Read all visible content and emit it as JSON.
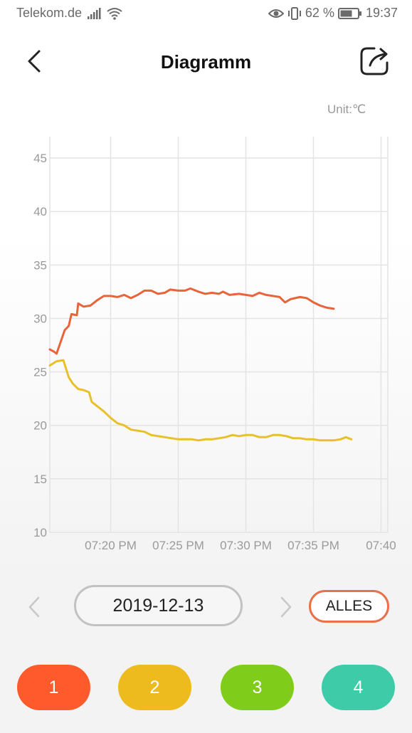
{
  "status_bar": {
    "carrier": "Telekom.de",
    "battery": "62 %",
    "time": "19:37"
  },
  "header": {
    "title": "Diagramm"
  },
  "unit_label": "Unit:℃",
  "chart_data": {
    "type": "line",
    "title": "",
    "xlabel": "",
    "ylabel": "",
    "ylim": [
      10,
      47
    ],
    "yticks": [
      10,
      15,
      20,
      25,
      30,
      35,
      40,
      45
    ],
    "x_ticks": [
      {
        "t": 20,
        "label": "07:20 PM"
      },
      {
        "t": 25,
        "label": "07:25 PM"
      },
      {
        "t": 30,
        "label": "07:30 PM"
      },
      {
        "t": 35,
        "label": "07:35 PM"
      },
      {
        "t": 40,
        "label": "07:40"
      }
    ],
    "xlim": [
      15.5,
      40.5
    ],
    "grid": true,
    "series": [
      {
        "color": "#e8643a",
        "points": [
          [
            15.5,
            27.1
          ],
          [
            15.8,
            26.9
          ],
          [
            16.0,
            26.7
          ],
          [
            16.3,
            27.8
          ],
          [
            16.6,
            28.9
          ],
          [
            16.9,
            29.3
          ],
          [
            17.1,
            30.4
          ],
          [
            17.5,
            30.3
          ],
          [
            17.6,
            31.4
          ],
          [
            18.0,
            31.1
          ],
          [
            18.5,
            31.2
          ],
          [
            19.0,
            31.7
          ],
          [
            19.5,
            32.1
          ],
          [
            20.0,
            32.1
          ],
          [
            20.5,
            32.0
          ],
          [
            21.0,
            32.2
          ],
          [
            21.5,
            31.9
          ],
          [
            22.0,
            32.2
          ],
          [
            22.5,
            32.6
          ],
          [
            23.0,
            32.6
          ],
          [
            23.5,
            32.3
          ],
          [
            24.0,
            32.4
          ],
          [
            24.4,
            32.7
          ],
          [
            25.0,
            32.6
          ],
          [
            25.5,
            32.6
          ],
          [
            25.9,
            32.8
          ],
          [
            26.5,
            32.5
          ],
          [
            27.0,
            32.3
          ],
          [
            27.5,
            32.4
          ],
          [
            28.0,
            32.3
          ],
          [
            28.3,
            32.5
          ],
          [
            28.8,
            32.2
          ],
          [
            29.5,
            32.3
          ],
          [
            30.0,
            32.2
          ],
          [
            30.5,
            32.1
          ],
          [
            31.0,
            32.4
          ],
          [
            31.5,
            32.2
          ],
          [
            32.0,
            32.1
          ],
          [
            32.5,
            32.0
          ],
          [
            32.9,
            31.5
          ],
          [
            33.3,
            31.8
          ],
          [
            34.0,
            32.0
          ],
          [
            34.5,
            31.9
          ],
          [
            35.0,
            31.5
          ],
          [
            35.5,
            31.2
          ],
          [
            36.0,
            31.0
          ],
          [
            36.5,
            30.9
          ]
        ]
      },
      {
        "color": "#e8c02a",
        "points": [
          [
            15.5,
            25.6
          ],
          [
            16.0,
            26.0
          ],
          [
            16.5,
            26.1
          ],
          [
            16.9,
            24.5
          ],
          [
            17.2,
            23.9
          ],
          [
            17.6,
            23.4
          ],
          [
            18.0,
            23.3
          ],
          [
            18.4,
            23.1
          ],
          [
            18.6,
            22.2
          ],
          [
            19.0,
            21.8
          ],
          [
            19.5,
            21.3
          ],
          [
            20.0,
            20.7
          ],
          [
            20.5,
            20.2
          ],
          [
            21.0,
            20.0
          ],
          [
            21.5,
            19.6
          ],
          [
            22.0,
            19.5
          ],
          [
            22.5,
            19.4
          ],
          [
            23.0,
            19.1
          ],
          [
            23.5,
            19.0
          ],
          [
            24.0,
            18.9
          ],
          [
            24.5,
            18.8
          ],
          [
            25.0,
            18.7
          ],
          [
            25.5,
            18.7
          ],
          [
            26.0,
            18.7
          ],
          [
            26.5,
            18.6
          ],
          [
            27.0,
            18.7
          ],
          [
            27.5,
            18.7
          ],
          [
            28.0,
            18.8
          ],
          [
            28.5,
            18.9
          ],
          [
            29.0,
            19.1
          ],
          [
            29.5,
            19.0
          ],
          [
            30.0,
            19.1
          ],
          [
            30.5,
            19.1
          ],
          [
            31.0,
            18.9
          ],
          [
            31.5,
            18.9
          ],
          [
            32.0,
            19.1
          ],
          [
            32.5,
            19.1
          ],
          [
            33.0,
            19.0
          ],
          [
            33.5,
            18.8
          ],
          [
            34.0,
            18.8
          ],
          [
            34.5,
            18.7
          ],
          [
            35.0,
            18.7
          ],
          [
            35.5,
            18.6
          ],
          [
            36.0,
            18.6
          ],
          [
            36.5,
            18.6
          ],
          [
            37.0,
            18.7
          ],
          [
            37.4,
            18.9
          ],
          [
            37.8,
            18.7
          ]
        ]
      }
    ]
  },
  "navigation": {
    "date": "2019-12-13",
    "all_label": "ALLES"
  },
  "channels": [
    {
      "label": "1",
      "color": "#ff5a2c"
    },
    {
      "label": "2",
      "color": "#eebb1f"
    },
    {
      "label": "3",
      "color": "#7fcc1a"
    },
    {
      "label": "4",
      "color": "#3ecba8"
    }
  ],
  "icons": {
    "back": "chevron-left-icon",
    "share": "share-icon",
    "prev": "chevron-left-icon",
    "next": "chevron-right-icon",
    "signal": "signal-icon",
    "wifi": "wifi-icon",
    "eye": "eye-icon",
    "vibrate": "vibrate-icon",
    "battery": "battery-icon"
  }
}
